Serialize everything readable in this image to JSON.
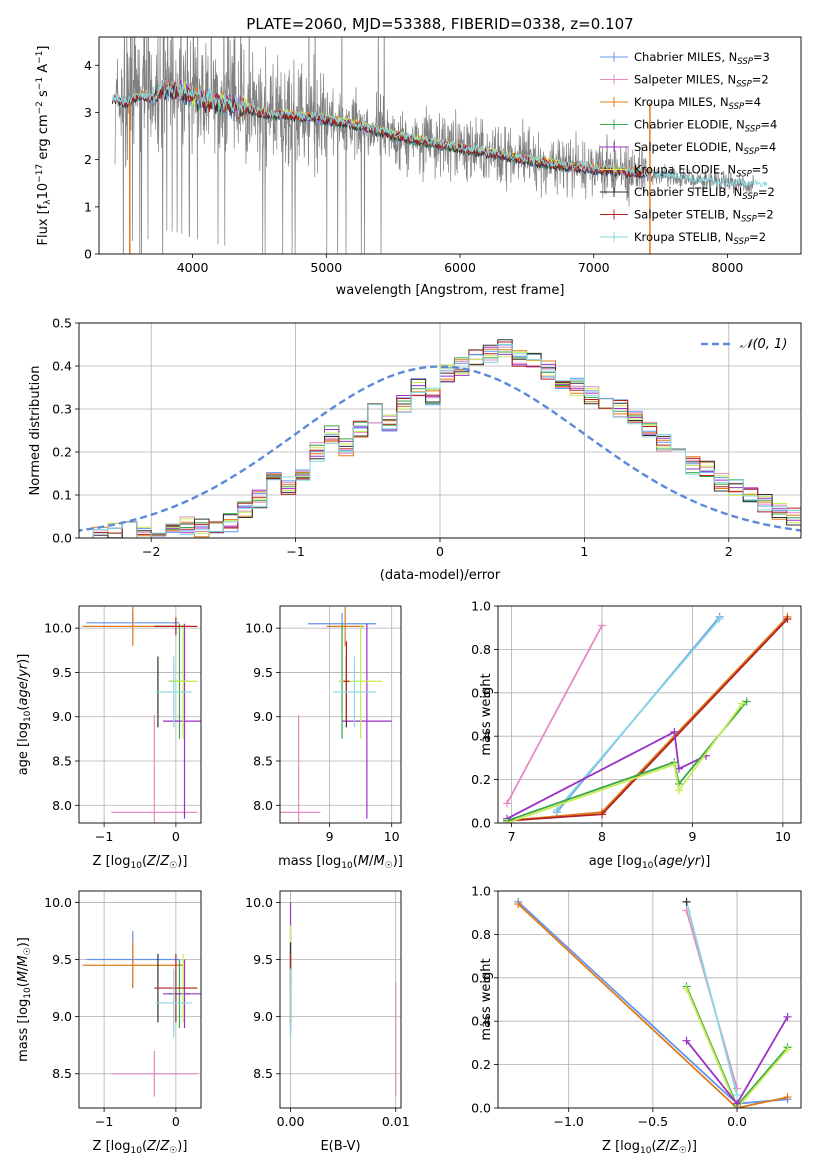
{
  "colors": {
    "chabrier_miles": "#6495ed",
    "salpeter_miles": "#e48cc1",
    "kroupa_miles": "#e07b1a",
    "chabrier_elodie": "#3aa64a",
    "salpeter_elodie": "#9a32c6",
    "kroupa_elodie": "#c7ec55",
    "chabrier_stelib": "#303030",
    "salpeter_stelib": "#b22222",
    "kroupa_stelib": "#88d8e0",
    "data": "#808080",
    "normal": "#5b8ad8"
  },
  "chart_data": [
    {
      "id": "spectrum",
      "type": "line",
      "title": "PLATE=2060, MJD=53388, FIBERID=0338, z=0.107",
      "xlabel": "wavelength [Angstrom, rest frame]",
      "ylabel": "Flux [f_λ 10^-17 erg cm^-2 s^-1 A^-1]",
      "xlim": [
        3300,
        8550
      ],
      "ylim": [
        0,
        4.6
      ],
      "xticks": [
        4000,
        5000,
        6000,
        7000,
        8000
      ],
      "yticks": [
        0,
        1,
        2,
        3,
        4
      ],
      "legend": [
        {
          "key": "chabrier_miles",
          "base": "Chabrier MILES, N",
          "sub": "SSP",
          "tail": "=3"
        },
        {
          "key": "salpeter_miles",
          "base": "Salpeter MILES, N",
          "sub": "SSP",
          "tail": "=2"
        },
        {
          "key": "kroupa_miles",
          "base": "Kroupa MILES, N",
          "sub": "SSP",
          "tail": "=4"
        },
        {
          "key": "chabrier_elodie",
          "base": "Chabrier ELODIE, N",
          "sub": "SSP",
          "tail": "=4"
        },
        {
          "key": "salpeter_elodie",
          "base": "Salpeter ELODIE, N",
          "sub": "SSP",
          "tail": "=4"
        },
        {
          "key": "kroupa_elodie",
          "base": "Kroupa ELODIE, N",
          "sub": "SSP",
          "tail": "=5"
        },
        {
          "key": "chabrier_stelib",
          "base": "Chabrier STELIB, N",
          "sub": "SSP",
          "tail": "=2"
        },
        {
          "key": "salpeter_stelib",
          "base": "Salpeter STELIB, N",
          "sub": "SSP",
          "tail": "=2"
        },
        {
          "key": "kroupa_stelib",
          "base": "Kroupa STELIB, N",
          "sub": "SSP",
          "tail": "=2"
        }
      ],
      "legend_position": "upper right",
      "model_continuum": {
        "wavelength": [
          3400,
          3500,
          3600,
          3700,
          3800,
          3900,
          4000,
          4100,
          4200,
          4300,
          4400,
          4500,
          4600,
          4700,
          4800,
          4900,
          5000,
          5200,
          5400,
          5600,
          5800,
          6000,
          6200,
          6400,
          6600,
          6800,
          7000,
          7200,
          7400,
          7600,
          7800,
          8000,
          8200
        ],
        "flux": [
          3.3,
          3.2,
          3.35,
          3.3,
          3.5,
          3.45,
          3.35,
          3.25,
          3.2,
          3.15,
          3.1,
          3.0,
          2.95,
          2.95,
          2.9,
          2.9,
          2.85,
          2.75,
          2.6,
          2.45,
          2.35,
          2.25,
          2.15,
          2.05,
          1.95,
          1.85,
          1.8,
          1.75,
          1.7,
          1.62,
          1.55,
          1.5,
          1.45
        ]
      }
    },
    {
      "id": "residuals",
      "type": "step",
      "xlabel": "(data-model)/error",
      "ylabel": "Normed distribution",
      "xlim": [
        -2.5,
        2.5
      ],
      "ylim": [
        0,
        0.5
      ],
      "xticks": [
        -2,
        -1,
        0,
        1,
        2
      ],
      "yticks": [
        0.0,
        0.1,
        0.2,
        0.3,
        0.4,
        0.5
      ],
      "legend_label": "𝒩(0, 1)",
      "legend_position": "upper right",
      "bin_width": 0.1,
      "bin_start": -2.5,
      "histogram": [
        0.005,
        0.008,
        0.012,
        0.015,
        0.01,
        0.02,
        0.035,
        0.03,
        0.025,
        0.03,
        0.035,
        0.07,
        0.09,
        0.14,
        0.12,
        0.15,
        0.2,
        0.24,
        0.21,
        0.25,
        0.29,
        0.27,
        0.31,
        0.35,
        0.33,
        0.38,
        0.4,
        0.42,
        0.43,
        0.44,
        0.42,
        0.41,
        0.39,
        0.37,
        0.35,
        0.33,
        0.32,
        0.3,
        0.28,
        0.25,
        0.22,
        0.2,
        0.17,
        0.16,
        0.13,
        0.12,
        0.1,
        0.08,
        0.06,
        0.05,
        0.04
      ]
    },
    {
      "id": "age_vs_Z",
      "type": "errorbar",
      "xlabel": "Z [log10(Z/Z☉)]",
      "ylabel": "age [log10(age/yr)]",
      "xlim": [
        -1.35,
        0.35
      ],
      "ylim": [
        7.8,
        10.25
      ],
      "xticks": [
        -1,
        0
      ],
      "yticks": [
        8.0,
        8.5,
        9.0,
        9.5,
        10.0
      ],
      "points": [
        {
          "key": "chabrier_miles",
          "x": -0.6,
          "y": 10.06,
          "xerr": 0.65,
          "yerr": 0.12
        },
        {
          "key": "salpeter_miles",
          "x": -0.3,
          "y": 7.92,
          "xerr": 0.6,
          "yerr": 1.1
        },
        {
          "key": "kroupa_miles",
          "x": -0.6,
          "y": 10.02,
          "xerr": 0.7,
          "yerr": 0.22
        },
        {
          "key": "chabrier_elodie",
          "x": 0.05,
          "y": 9.4,
          "xerr": 0.15,
          "yerr": 0.65
        },
        {
          "key": "salpeter_elodie",
          "x": 0.12,
          "y": 8.95,
          "xerr": 0.3,
          "yerr": 1.1
        },
        {
          "key": "kroupa_elodie",
          "x": 0.1,
          "y": 9.4,
          "xerr": 0.2,
          "yerr": 0.65
        },
        {
          "key": "chabrier_stelib",
          "x": -0.25,
          "y": 9.28,
          "xerr": 0.0,
          "yerr": 0.4
        },
        {
          "key": "salpeter_stelib",
          "x": 0.0,
          "y": 10.02,
          "xerr": 0.3,
          "yerr": 0.1
        },
        {
          "key": "kroupa_stelib",
          "x": -0.03,
          "y": 9.28,
          "xerr": 0.25,
          "yerr": 0.4
        }
      ]
    },
    {
      "id": "age_vs_mass",
      "type": "errorbar",
      "xlabel": "mass [log10(M/M☉)]",
      "ylabel": "",
      "xlim": [
        8.2,
        10.15
      ],
      "ylim": [
        7.8,
        10.25
      ],
      "xticks": [
        9,
        10
      ],
      "yticks": [
        8.0,
        8.5,
        9.0,
        9.5,
        10.0
      ],
      "points": [
        {
          "key": "chabrier_miles",
          "x": 9.2,
          "y": 10.05,
          "xerr": 0.55,
          "yerr": 0.12
        },
        {
          "key": "salpeter_miles",
          "x": 8.5,
          "y": 7.92,
          "xerr": 0.35,
          "yerr": 1.1
        },
        {
          "key": "kroupa_miles",
          "x": 9.25,
          "y": 10.02,
          "xerr": 0.3,
          "yerr": 0.22
        },
        {
          "key": "chabrier_elodie",
          "x": 9.2,
          "y": 9.4,
          "xerr": 0.05,
          "yerr": 0.65
        },
        {
          "key": "salpeter_elodie",
          "x": 9.6,
          "y": 8.95,
          "xerr": 0.4,
          "yerr": 1.1
        },
        {
          "key": "kroupa_elodie",
          "x": 9.5,
          "y": 9.4,
          "xerr": 0.35,
          "yerr": 0.65
        },
        {
          "key": "chabrier_stelib",
          "x": 9.27,
          "y": 9.28,
          "xerr": 0.0,
          "yerr": 0.4
        },
        {
          "key": "salpeter_stelib",
          "x": 9.27,
          "y": 9.4,
          "xerr": 0.05,
          "yerr": 0.45
        },
        {
          "key": "kroupa_stelib",
          "x": 9.4,
          "y": 9.28,
          "xerr": 0.35,
          "yerr": 0.4
        }
      ]
    },
    {
      "id": "weight_vs_age",
      "type": "line",
      "xlabel": "age  [log10(age/yr)]",
      "ylabel": "mass weight",
      "xlim": [
        6.85,
        10.2
      ],
      "ylim": [
        0,
        1.0
      ],
      "xticks": [
        7,
        8,
        9,
        10
      ],
      "yticks": [
        0.0,
        0.2,
        0.4,
        0.6,
        0.8,
        1.0
      ],
      "series": [
        {
          "key": "salpeter_miles",
          "x": [
            6.95,
            8.0
          ],
          "y": [
            0.09,
            0.91
          ]
        },
        {
          "key": "chabrier_miles",
          "x": [
            7.5,
            9.3
          ],
          "y": [
            0.05,
            0.95
          ]
        },
        {
          "key": "kroupa_stelib",
          "x": [
            7.5,
            9.3
          ],
          "y": [
            0.06,
            0.94
          ]
        },
        {
          "key": "kroupa_miles",
          "x": [
            6.95,
            8.0,
            10.05
          ],
          "y": [
            0.01,
            0.05,
            0.95
          ]
        },
        {
          "key": "salpeter_stelib",
          "x": [
            6.95,
            8.0,
            10.05
          ],
          "y": [
            0.01,
            0.04,
            0.94
          ]
        },
        {
          "key": "salpeter_elodie",
          "x": [
            6.95,
            8.8,
            8.85,
            9.15
          ],
          "y": [
            0.02,
            0.42,
            0.25,
            0.31
          ]
        },
        {
          "key": "chabrier_elodie",
          "x": [
            6.95,
            8.8,
            8.85,
            9.6
          ],
          "y": [
            0.01,
            0.28,
            0.18,
            0.56
          ]
        },
        {
          "key": "kroupa_elodie",
          "x": [
            6.95,
            8.8,
            8.85,
            9.55
          ],
          "y": [
            0.0,
            0.27,
            0.15,
            0.55
          ]
        }
      ]
    },
    {
      "id": "mass_vs_Z",
      "type": "errorbar",
      "xlabel": "Z [log10(Z/Z☉)]",
      "ylabel": "mass [log10(M/M☉)]",
      "xlim": [
        -1.35,
        0.35
      ],
      "ylim": [
        8.2,
        10.1
      ],
      "xticks": [
        -1,
        0
      ],
      "yticks": [
        8.5,
        9.0,
        9.5,
        10.0
      ],
      "points": [
        {
          "key": "chabrier_miles",
          "x": -0.6,
          "y": 9.5,
          "xerr": 0.65,
          "yerr": 0.25
        },
        {
          "key": "salpeter_miles",
          "x": -0.3,
          "y": 8.5,
          "xerr": 0.6,
          "yerr": 0.2
        },
        {
          "key": "kroupa_miles",
          "x": -0.6,
          "y": 9.45,
          "xerr": 0.7,
          "yerr": 0.2
        },
        {
          "key": "chabrier_elodie",
          "x": 0.05,
          "y": 9.2,
          "xerr": 0.15,
          "yerr": 0.3
        },
        {
          "key": "salpeter_elodie",
          "x": 0.12,
          "y": 9.2,
          "xerr": 0.3,
          "yerr": 0.3
        },
        {
          "key": "kroupa_elodie",
          "x": 0.1,
          "y": 9.25,
          "xerr": 0.2,
          "yerr": 0.3
        },
        {
          "key": "chabrier_stelib",
          "x": -0.25,
          "y": 9.25,
          "xerr": 0.0,
          "yerr": 0.3
        },
        {
          "key": "salpeter_stelib",
          "x": 0.0,
          "y": 9.25,
          "xerr": 0.3,
          "yerr": 0.3
        },
        {
          "key": "kroupa_stelib",
          "x": -0.03,
          "y": 9.12,
          "xerr": 0.25,
          "yerr": 0.3
        }
      ]
    },
    {
      "id": "mass_vs_ebv",
      "type": "errorbar",
      "xlabel": "E(B-V)",
      "ylabel": "",
      "xlim": [
        -0.001,
        0.0105
      ],
      "ylim": [
        8.2,
        10.1
      ],
      "xticks": [
        0.0,
        0.01
      ],
      "xticklabels": [
        "0.00",
        "0.01"
      ],
      "yticks": [
        8.5,
        9.0,
        9.5,
        10.0
      ],
      "points": [
        {
          "key": "chabrier_miles",
          "x": 0.0,
          "y": 9.5,
          "xerr": 0.0,
          "yerr": 0.25
        },
        {
          "key": "salpeter_miles",
          "x": 0.01,
          "y": 8.8,
          "xerr": 0.0,
          "yerr": 0.5
        },
        {
          "key": "kroupa_miles",
          "x": 0.0,
          "y": 9.45,
          "xerr": 0.0,
          "yerr": 0.2
        },
        {
          "key": "chabrier_elodie",
          "x": 0.0,
          "y": 9.2,
          "xerr": 0.0,
          "yerr": 0.3
        },
        {
          "key": "salpeter_elodie",
          "x": 0.0,
          "y": 9.7,
          "xerr": 0.0,
          "yerr": 0.3
        },
        {
          "key": "kroupa_elodie",
          "x": 0.0,
          "y": 9.5,
          "xerr": 0.0,
          "yerr": 0.3
        },
        {
          "key": "chabrier_stelib",
          "x": 0.0,
          "y": 9.25,
          "xerr": 0.0,
          "yerr": 0.4
        },
        {
          "key": "salpeter_stelib",
          "x": 0.0,
          "y": 9.25,
          "xerr": 0.0,
          "yerr": 0.3
        },
        {
          "key": "kroupa_stelib",
          "x": 0.0,
          "y": 9.12,
          "xerr": 0.0,
          "yerr": 0.3
        }
      ]
    },
    {
      "id": "weight_vs_Z",
      "type": "line",
      "xlabel": "Z [log10(Z/Z☉)]",
      "ylabel": "mass weight",
      "xlim": [
        -1.42,
        0.38
      ],
      "ylim": [
        0,
        1.0
      ],
      "xticks": [
        -1.0,
        -0.5,
        0.0
      ],
      "xticklabels": [
        "−1.0",
        "−0.5",
        "0.0"
      ],
      "yticks": [
        0.0,
        0.2,
        0.4,
        0.6,
        0.8,
        1.0
      ],
      "series": [
        {
          "key": "chabrier_miles",
          "x": [
            -1.3,
            0.0,
            0.3
          ],
          "y": [
            0.95,
            0.02,
            0.04
          ]
        },
        {
          "key": "kroupa_miles",
          "x": [
            -1.3,
            0.0,
            0.3
          ],
          "y": [
            0.94,
            0.0,
            0.05
          ]
        },
        {
          "key": "salpeter_miles",
          "x": [
            -0.3,
            0.0
          ],
          "y": [
            0.91,
            0.09
          ]
        },
        {
          "key": "kroupa_stelib",
          "x": [
            -0.3,
            0.0
          ],
          "y": [
            0.95,
            0.06
          ]
        },
        {
          "key": "chabrier_elodie",
          "x": [
            -0.3,
            0.0,
            0.3
          ],
          "y": [
            0.56,
            0.01,
            0.28
          ]
        },
        {
          "key": "kroupa_elodie",
          "x": [
            -0.3,
            0.0,
            0.3
          ],
          "y": [
            0.55,
            0.0,
            0.27
          ]
        },
        {
          "key": "salpeter_elodie",
          "x": [
            -0.3,
            0.0,
            0.3
          ],
          "y": [
            0.31,
            0.02,
            0.42
          ]
        },
        {
          "key": "chabrier_stelib",
          "x": [
            -0.3
          ],
          "y": [
            0.95
          ]
        }
      ]
    }
  ]
}
